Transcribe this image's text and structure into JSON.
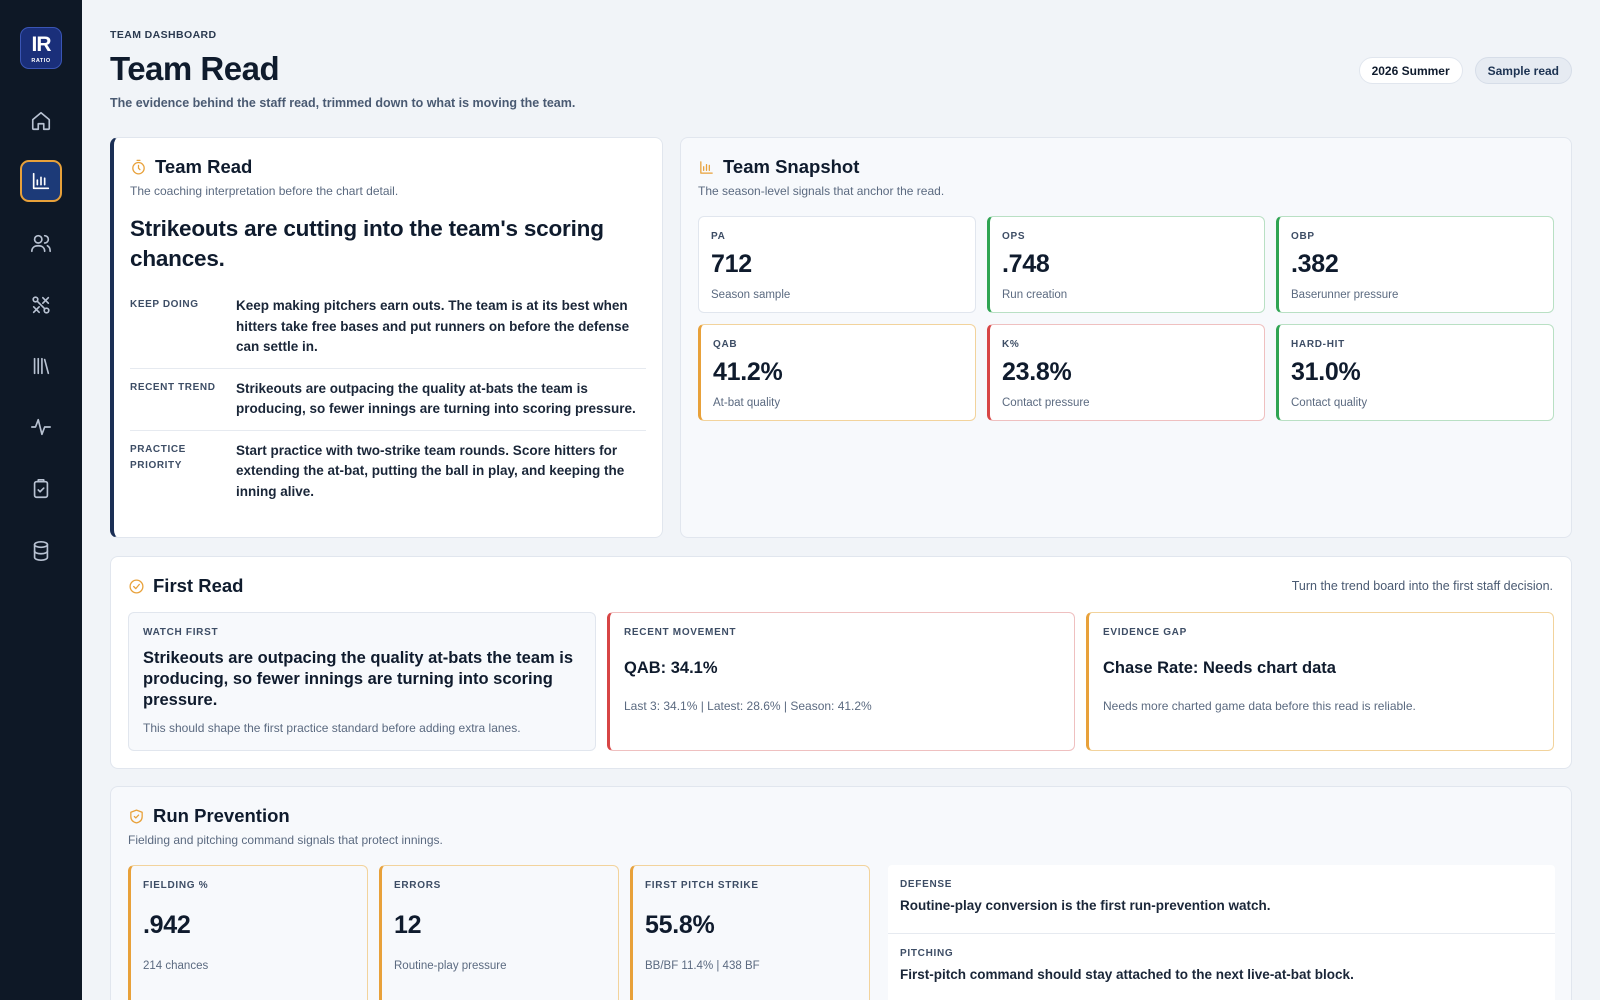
{
  "sidebar": {
    "logo_text": "IR",
    "logo_sub": "RATIO",
    "items": [
      {
        "icon": "home-icon"
      },
      {
        "icon": "bar-chart-icon",
        "active": true
      },
      {
        "icon": "users-icon"
      },
      {
        "icon": "strategy-icon"
      },
      {
        "icon": "library-icon"
      },
      {
        "icon": "activity-icon"
      },
      {
        "icon": "clipboard-icon"
      },
      {
        "icon": "database-icon"
      }
    ]
  },
  "header": {
    "eyebrow": "TEAM DASHBOARD",
    "title": "Team Read",
    "subtitle": "The evidence behind the staff read, trimmed down to what is moving the team.",
    "season_chip": "2026 Summer",
    "sample_chip": "Sample read"
  },
  "team_read": {
    "title": "Team Read",
    "subtitle": "The coaching interpretation before the chart detail.",
    "headline": "Strikeouts are cutting into the team's scoring chances.",
    "rows": [
      {
        "label": "KEEP DOING",
        "text": "Keep making pitchers earn outs. The team is at its best when hitters take free bases and put runners on before the defense can settle in."
      },
      {
        "label": "RECENT TREND",
        "text": "Strikeouts are outpacing the quality at-bats the team is producing, so fewer innings are turning into scoring pressure."
      },
      {
        "label": "PRACTICE PRIORITY",
        "text": "Start practice with two-strike team rounds. Score hitters for extending the at-bat, putting the ball in play, and keeping the inning alive."
      }
    ]
  },
  "snapshot": {
    "title": "Team Snapshot",
    "subtitle": "The season-level signals that anchor the read.",
    "stats": [
      {
        "label": "PA",
        "value": "712",
        "note": "Season sample",
        "tone": "neutral"
      },
      {
        "label": "OPS",
        "value": ".748",
        "note": "Run creation",
        "tone": "green"
      },
      {
        "label": "OBP",
        "value": ".382",
        "note": "Baserunner pressure",
        "tone": "green"
      },
      {
        "label": "QAB",
        "value": "41.2%",
        "note": "At-bat quality",
        "tone": "orange"
      },
      {
        "label": "K%",
        "value": "23.8%",
        "note": "Contact pressure",
        "tone": "red"
      },
      {
        "label": "HARD-HIT",
        "value": "31.0%",
        "note": "Contact quality",
        "tone": "green"
      }
    ]
  },
  "first_read": {
    "title": "First Read",
    "side_note": "Turn the trend board into the first staff decision.",
    "watch": {
      "label": "WATCH FIRST",
      "title": "Strikeouts are outpacing the quality at-bats the team is producing, so fewer innings are turning into scoring pressure.",
      "note": "This should shape the first practice standard before adding extra lanes."
    },
    "movement": {
      "label": "RECENT MOVEMENT",
      "title": "QAB: 34.1%",
      "note": "Last 3: 34.1% | Latest: 28.6% | Season: 41.2%"
    },
    "gap": {
      "label": "EVIDENCE GAP",
      "title": "Chase Rate: Needs chart data",
      "note": "Needs more charted game data before this read is reliable."
    }
  },
  "run_prevention": {
    "title": "Run Prevention",
    "subtitle": "Fielding and pitching command signals that protect innings.",
    "stats": [
      {
        "label": "FIELDING %",
        "value": ".942",
        "note": "214 chances"
      },
      {
        "label": "ERRORS",
        "value": "12",
        "note": "Routine-play pressure"
      },
      {
        "label": "FIRST PITCH STRIKE",
        "value": "55.8%",
        "note": "BB/BF 11.4% | 438 BF"
      }
    ],
    "notes": [
      {
        "label": "DEFENSE",
        "text": "Routine-play conversion is the first run-prevention watch."
      },
      {
        "label": "PITCHING",
        "text": "First-pitch command should stay attached to the next live-at-bat block."
      }
    ]
  }
}
